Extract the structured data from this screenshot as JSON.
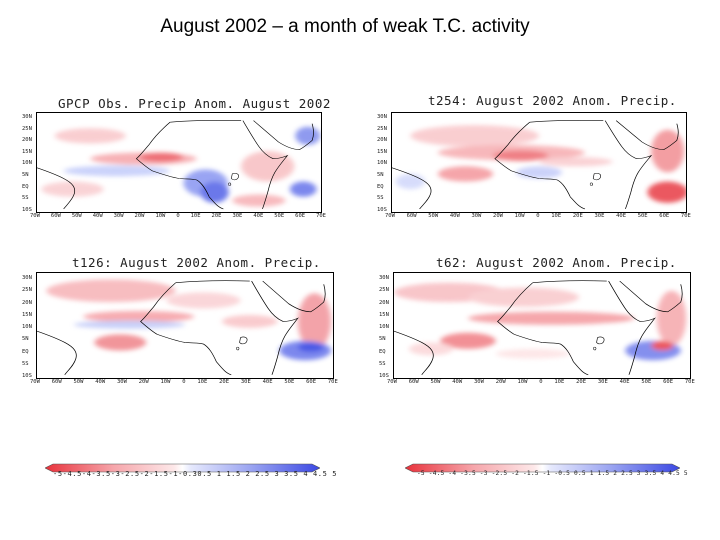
{
  "slide": {
    "title": "August 2002 – a month of weak T.C. activity"
  },
  "panels": {
    "gpcp": {
      "title": "GPCP Obs. Precip  Anom. August 2002",
      "lat_labels": [
        "30N",
        "25N",
        "20N",
        "15N",
        "10N",
        "5N",
        "EQ",
        "5S",
        "10S"
      ],
      "lon_labels": [
        "70W",
        "60W",
        "50W",
        "40W",
        "30W",
        "20W",
        "10W",
        "0",
        "10E",
        "20E",
        "30E",
        "40E",
        "50E",
        "60E",
        "70E"
      ]
    },
    "t254": {
      "title": "t254: August 2002 Anom. Precip.",
      "lat_labels": [
        "30N",
        "25N",
        "20N",
        "15N",
        "10N",
        "5N",
        "EQ",
        "5S",
        "10S"
      ],
      "lon_labels": [
        "70W",
        "60W",
        "50W",
        "40W",
        "30W",
        "20W",
        "10W",
        "0",
        "10E",
        "20E",
        "30E",
        "40E",
        "50E",
        "60E",
        "70E"
      ]
    },
    "t126": {
      "title": "t126: August 2002 Anom. Precip.",
      "lat_labels": [
        "30N",
        "25N",
        "20N",
        "15N",
        "10N",
        "5N",
        "EQ",
        "5S",
        "10S"
      ],
      "lon_labels": [
        "70W",
        "60W",
        "50W",
        "40W",
        "30W",
        "20W",
        "10W",
        "0",
        "10E",
        "20E",
        "30E",
        "40E",
        "50E",
        "60E",
        "70E"
      ]
    },
    "t62": {
      "title": "t62: August 2002 Anom. Precip.",
      "lat_labels": [
        "30N",
        "25N",
        "20N",
        "15N",
        "10N",
        "5N",
        "EQ",
        "5S",
        "10S"
      ],
      "lon_labels": [
        "70W",
        "60W",
        "50W",
        "40W",
        "30W",
        "20W",
        "10W",
        "0",
        "10E",
        "20E",
        "30E",
        "40E",
        "50E",
        "60E",
        "70E"
      ]
    }
  },
  "colorbars": {
    "left": {
      "labels": "-5-4.5-4-3.5-3-2.5-2-1.5-1-0.30.5 1 1.5 2 2.5 3 3.5 4 4.5 5"
    },
    "right": {
      "labels": "-5 -4.5 -4 -3.5 -3 -2.5 -2 -1.5 -1 -0.5 0.5 1 1.5 2 2.5 3 3.5 4 4.5 5"
    }
  },
  "colors": {
    "negative_strong": "#e8313b",
    "negative_light": "#fbd5d7",
    "positive_light": "#d6dcfb",
    "positive_strong": "#3b48e3",
    "coast": "#000000"
  }
}
